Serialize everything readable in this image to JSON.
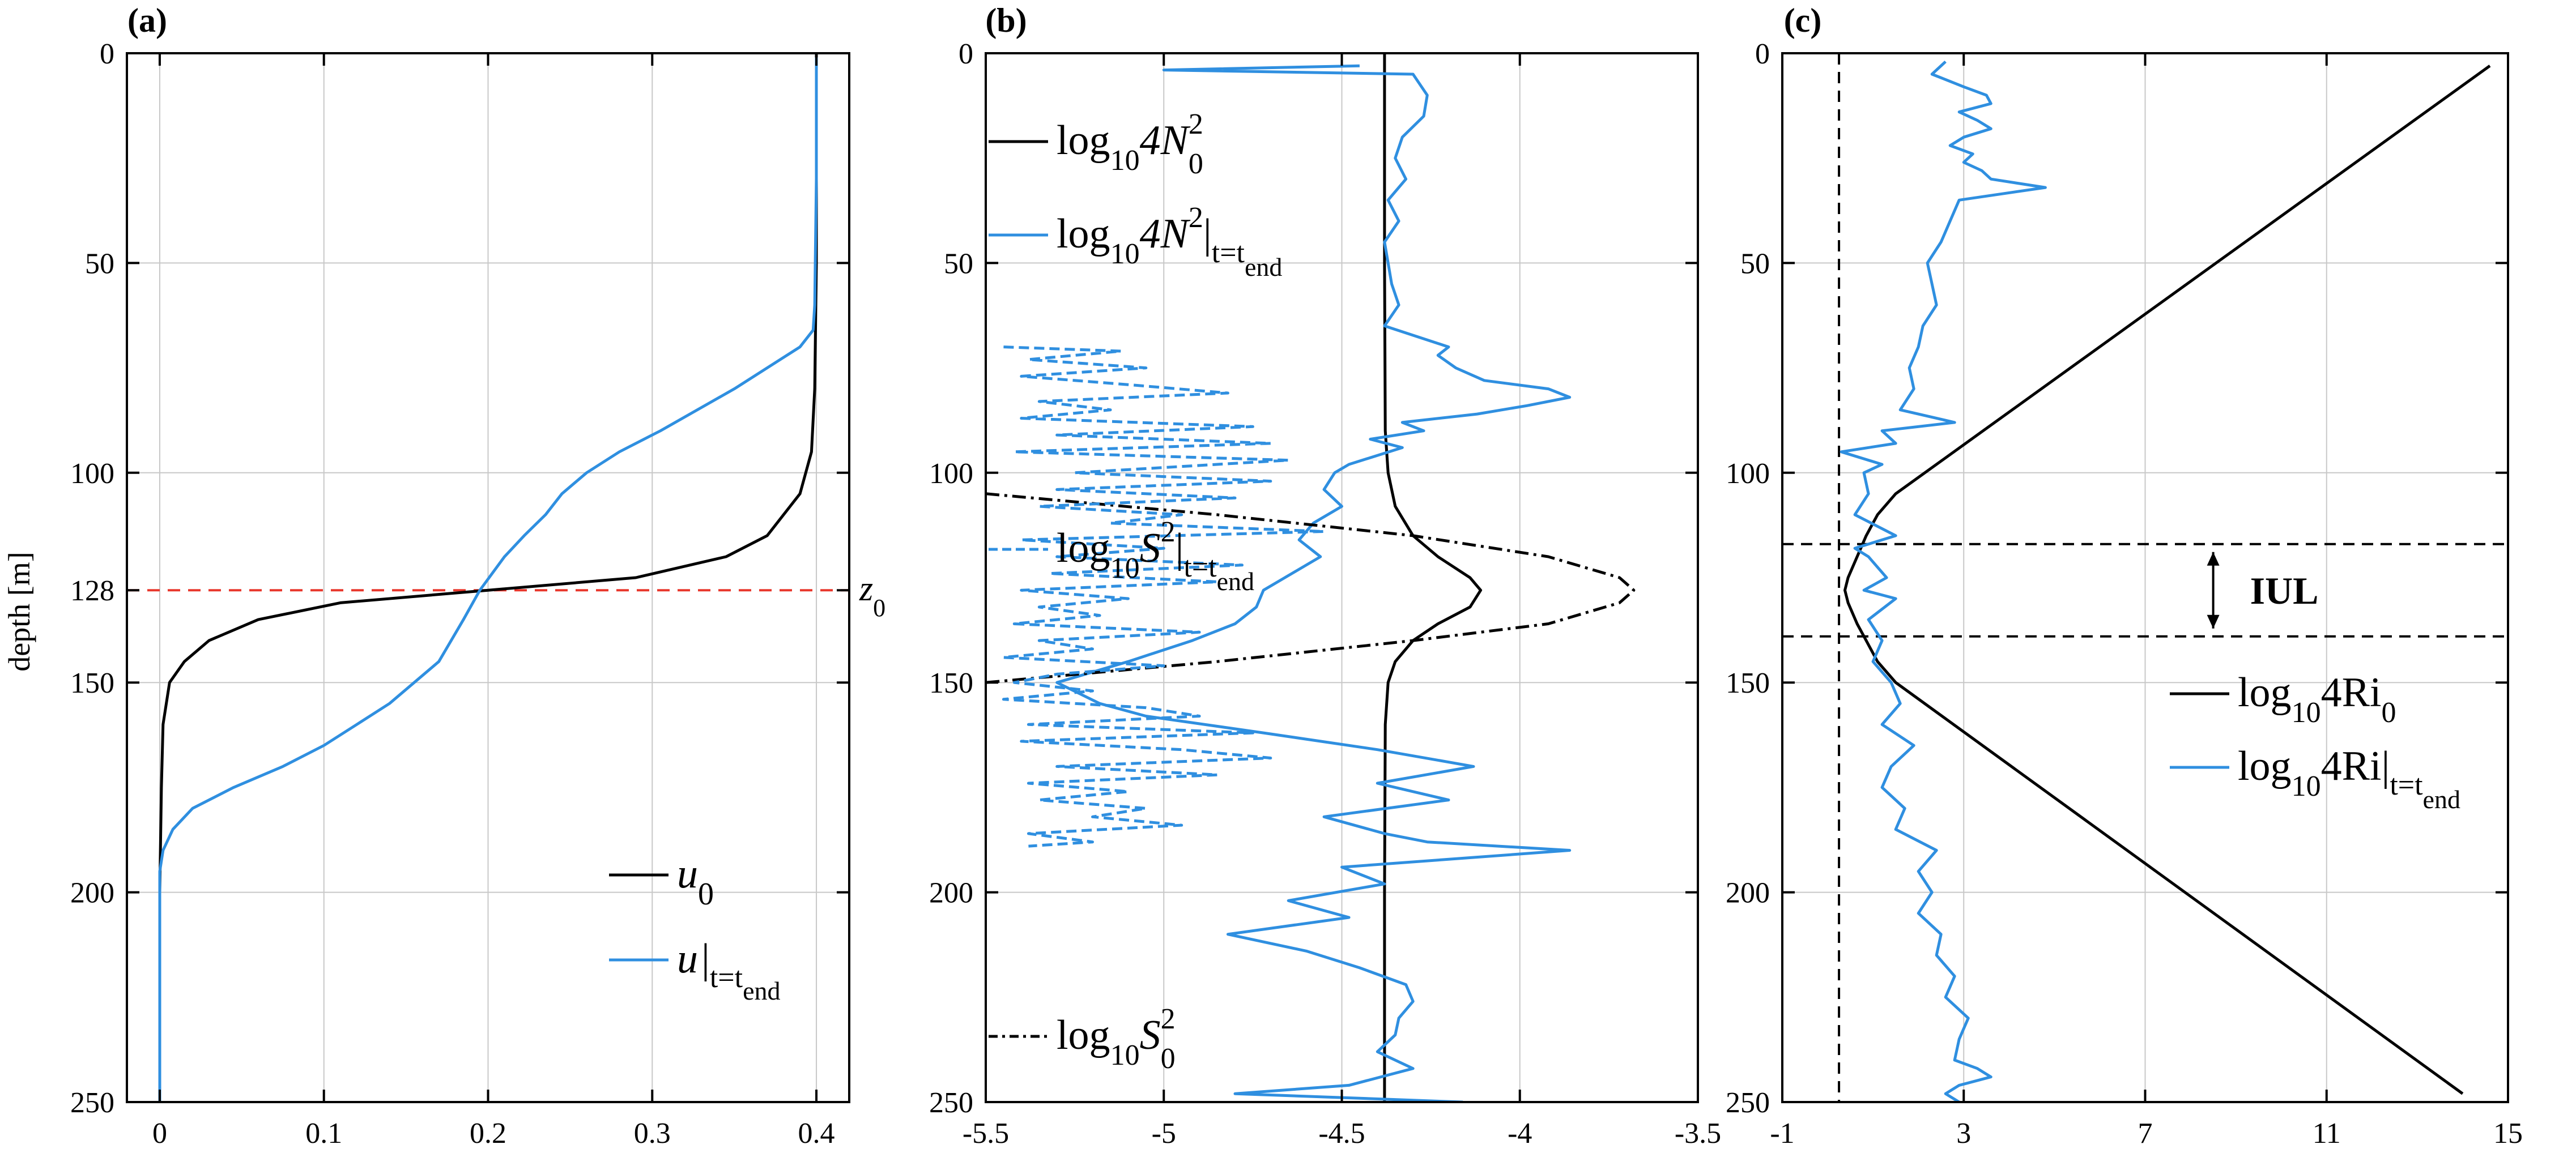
{
  "colors": {
    "initial": "#000000",
    "final": "#2f8fe0",
    "z0_line": "#e8372c",
    "grid": "#c8c8c8"
  },
  "chart_data": [
    {
      "panel": "(a)",
      "type": "line",
      "xlim": [
        -0.02,
        0.42
      ],
      "ylim": [
        0,
        250
      ],
      "y_reversed": true,
      "xticks": [
        "0",
        "0.1",
        "0.2",
        "0.3",
        "0.4"
      ],
      "xtick_values": [
        0,
        0.1,
        0.2,
        0.3,
        0.4
      ],
      "yticks": [
        "0",
        "50",
        "100",
        "128",
        "150",
        "200",
        "250"
      ],
      "ytick_values": [
        0,
        50,
        100,
        128,
        150,
        200,
        250
      ],
      "ylabel": "depth [m]",
      "grid": true,
      "legend_placement": "bottom-right",
      "hline": {
        "y": 128,
        "label": "z",
        "sub": "0"
      },
      "series": [
        {
          "key": "initial",
          "legend_main": "u",
          "legend_sub": "0",
          "legend_sub2": "",
          "y": [
            0,
            50,
            80,
            95,
            105,
            115,
            120,
            125,
            128,
            131,
            135,
            140,
            145,
            150,
            160,
            175,
            200,
            250
          ],
          "x": [
            0.4,
            0.4,
            0.399,
            0.397,
            0.39,
            0.37,
            0.345,
            0.29,
            0.2,
            0.11,
            0.06,
            0.03,
            0.015,
            0.006,
            0.002,
            0.001,
            0,
            0
          ]
        },
        {
          "key": "final",
          "legend_main": "u",
          "legend_sub": "t=t",
          "legend_sub2": "end",
          "y": [
            1,
            30,
            60,
            66,
            70,
            80,
            90,
            95,
            100,
            105,
            110,
            115,
            120,
            128,
            135,
            145,
            150,
            155,
            160,
            165,
            170,
            175,
            180,
            185,
            190,
            195,
            200,
            220,
            250
          ],
          "x": [
            0.4,
            0.4,
            0.399,
            0.398,
            0.39,
            0.35,
            0.305,
            0.28,
            0.26,
            0.245,
            0.235,
            0.222,
            0.21,
            0.195,
            0.185,
            0.17,
            0.155,
            0.14,
            0.12,
            0.1,
            0.075,
            0.045,
            0.02,
            0.008,
            0.002,
            0,
            0,
            0,
            0
          ]
        }
      ]
    },
    {
      "panel": "(b)",
      "type": "line",
      "xlim": [
        -5.5,
        -3.5
      ],
      "ylim": [
        0,
        250
      ],
      "y_reversed": true,
      "xticks": [
        "-5.5",
        "-5",
        "-4.5",
        "-4",
        "-3.5"
      ],
      "xtick_values": [
        -5.5,
        -5,
        -4.5,
        -4,
        -3.5
      ],
      "yticks": [
        "0",
        "50",
        "100",
        "150",
        "200",
        "250"
      ],
      "ytick_values": [
        0,
        50,
        100,
        150,
        200,
        250
      ],
      "grid": true,
      "series": [
        {
          "key": "initial",
          "dash": "none",
          "legend_main": "log",
          "legend_sub": "10",
          "legend_tail": "4N",
          "legend_sup": "2",
          "legend_sub3": "0",
          "legend_sub4": "",
          "y": [
            0,
            50,
            90,
            100,
            108,
            115,
            120,
            125,
            128,
            132,
            136,
            140,
            145,
            150,
            160,
            200,
            250
          ],
          "x": [
            -4.38,
            -4.38,
            -4.378,
            -4.37,
            -4.35,
            -4.3,
            -4.23,
            -4.14,
            -4.11,
            -4.14,
            -4.23,
            -4.3,
            -4.35,
            -4.37,
            -4.378,
            -4.38,
            -4.38
          ]
        },
        {
          "key": "final",
          "dash": "none",
          "legend_main": "log",
          "legend_sub": "10",
          "legend_tail": "4N",
          "legend_sup": "2",
          "legend_sub3": "t=t",
          "legend_sub4": "end",
          "y": [
            3,
            4,
            5,
            10,
            15,
            20,
            25,
            30,
            35,
            40,
            45,
            50,
            55,
            60,
            65,
            70,
            72,
            75,
            78,
            80,
            82,
            84,
            86,
            88,
            90,
            92,
            94,
            98,
            100,
            104,
            108,
            112,
            116,
            120,
            125,
            128,
            132,
            136,
            140,
            145,
            150,
            155,
            158,
            162,
            166,
            170,
            174,
            178,
            182,
            186,
            188,
            190,
            194,
            198,
            202,
            206,
            210,
            214,
            218,
            222,
            226,
            230,
            234,
            238,
            242,
            246,
            248,
            250
          ],
          "x": [
            -4.45,
            -5.0,
            -4.3,
            -4.26,
            -4.27,
            -4.33,
            -4.35,
            -4.32,
            -4.37,
            -4.34,
            -4.38,
            -4.37,
            -4.36,
            -4.34,
            -4.38,
            -4.2,
            -4.23,
            -4.18,
            -4.1,
            -3.92,
            -3.86,
            -3.98,
            -4.12,
            -4.33,
            -4.27,
            -4.42,
            -4.33,
            -4.48,
            -4.52,
            -4.55,
            -4.5,
            -4.58,
            -4.62,
            -4.56,
            -4.66,
            -4.72,
            -4.74,
            -4.8,
            -4.92,
            -5.1,
            -5.3,
            -5.18,
            -5.05,
            -4.72,
            -4.4,
            -4.13,
            -4.4,
            -4.2,
            -4.55,
            -4.38,
            -4.26,
            -3.86,
            -4.5,
            -4.38,
            -4.65,
            -4.48,
            -4.82,
            -4.6,
            -4.45,
            -4.32,
            -4.3,
            -4.34,
            -4.35,
            -4.4,
            -4.3,
            -4.48,
            -4.8,
            -4.16
          ]
        },
        {
          "key": "initial",
          "dash": "24 9 5 9",
          "legend_main": "log",
          "legend_sub": "10",
          "legend_tail": "S",
          "legend_sup": "2",
          "legend_sub3": "0",
          "legend_sub4": "",
          "y": [
            105,
            110,
            115,
            120,
            125,
            128,
            131,
            136,
            140,
            145,
            150
          ],
          "x": [
            -5.5,
            -4.85,
            -4.3,
            -3.92,
            -3.72,
            -3.68,
            -3.72,
            -3.92,
            -4.3,
            -4.85,
            -5.5
          ]
        },
        {
          "key": "final",
          "dash": "18 9",
          "legend_main": "log",
          "legend_sub": "10",
          "legend_tail": "S",
          "legend_sup": "2",
          "legend_sub3": "t=t",
          "legend_sub4": "end",
          "y": [
            70,
            71,
            73,
            75,
            77,
            79,
            81,
            83,
            85,
            87,
            89,
            91,
            93,
            95,
            97,
            100,
            102,
            104,
            106,
            108,
            110,
            112,
            114,
            116,
            118,
            120,
            122,
            124,
            126,
            128,
            130,
            132,
            134,
            136,
            138,
            140,
            142,
            144,
            146,
            148,
            150,
            152,
            154,
            156,
            158,
            160,
            162,
            164,
            166,
            168,
            170,
            172,
            174,
            176,
            178,
            180,
            182,
            184,
            186,
            188,
            189
          ],
          "x": [
            -5.45,
            -5.12,
            -5.38,
            -5.05,
            -5.4,
            -5.1,
            -4.82,
            -5.35,
            -5.15,
            -5.4,
            -4.75,
            -5.3,
            -4.7,
            -5.42,
            -4.65,
            -5.25,
            -4.7,
            -5.3,
            -4.8,
            -5.35,
            -4.95,
            -5.15,
            -4.55,
            -5.4,
            -5.0,
            -5.3,
            -4.78,
            -5.32,
            -4.85,
            -5.4,
            -5.1,
            -5.35,
            -5.18,
            -5.42,
            -4.9,
            -5.35,
            -5.2,
            -5.45,
            -5.0,
            -5.3,
            -5.42,
            -5.2,
            -5.45,
            -5.05,
            -4.9,
            -5.38,
            -4.75,
            -5.4,
            -4.95,
            -4.7,
            -5.3,
            -4.85,
            -5.38,
            -5.1,
            -5.35,
            -5.05,
            -5.2,
            -4.95,
            -5.38,
            -5.2,
            -5.38
          ]
        }
      ]
    },
    {
      "panel": "(c)",
      "type": "line",
      "xlim": [
        -1,
        15
      ],
      "ylim": [
        0,
        250
      ],
      "y_reversed": true,
      "xticks": [
        "-1",
        "3",
        "7",
        "11",
        "15"
      ],
      "xtick_values": [
        -1,
        3,
        7,
        11,
        15
      ],
      "yticks": [
        "0",
        "50",
        "100",
        "150",
        "200",
        "250"
      ],
      "ytick_values": [
        0,
        50,
        100,
        150,
        200,
        250
      ],
      "grid": true,
      "vline": {
        "x": 0.25
      },
      "iul": {
        "y_top": 117,
        "y_bottom": 139,
        "label": "IUL"
      },
      "series": [
        {
          "key": "initial",
          "legend_main": "log",
          "legend_sub": "10",
          "legend_tail": "4Ri",
          "legend_sub3": "0",
          "legend_sub4": "",
          "y": [
            3,
            105,
            110,
            115,
            120,
            125,
            128,
            131,
            136,
            140,
            145,
            150,
            248
          ],
          "x": [
            14.6,
            1.5,
            1.1,
            0.85,
            0.65,
            0.45,
            0.38,
            0.45,
            0.65,
            0.85,
            1.1,
            1.5,
            14.0
          ]
        },
        {
          "key": "final",
          "legend_main": "log",
          "legend_sub": "10",
          "legend_tail": "4Ri",
          "legend_sub3": "t=t",
          "legend_sub4": "end",
          "y": [
            2,
            5,
            8,
            10,
            12,
            14,
            16,
            18,
            20,
            22,
            24,
            26,
            28,
            30,
            32,
            35,
            40,
            45,
            50,
            55,
            60,
            65,
            70,
            75,
            80,
            85,
            88,
            90,
            93,
            95,
            98,
            100,
            105,
            110,
            115,
            118,
            120,
            125,
            128,
            130,
            135,
            140,
            145,
            150,
            155,
            160,
            165,
            170,
            175,
            180,
            185,
            190,
            195,
            200,
            205,
            210,
            215,
            220,
            225,
            230,
            235,
            240,
            242,
            244,
            246,
            248,
            250
          ],
          "x": [
            2.6,
            2.3,
            3.0,
            3.5,
            3.6,
            2.9,
            3.3,
            3.6,
            3.0,
            2.7,
            3.2,
            3.0,
            3.4,
            3.6,
            4.8,
            2.9,
            2.7,
            2.5,
            2.2,
            2.3,
            2.4,
            2.1,
            2.0,
            1.8,
            1.9,
            1.6,
            2.8,
            1.2,
            1.5,
            0.3,
            1.2,
            0.8,
            0.9,
            0.6,
            1.5,
            0.6,
            0.9,
            1.3,
            0.8,
            1.5,
            0.9,
            1.2,
            1.0,
            1.4,
            1.6,
            1.2,
            1.9,
            1.4,
            1.2,
            1.7,
            1.5,
            2.4,
            2.0,
            2.3,
            2.0,
            2.5,
            2.4,
            2.8,
            2.6,
            3.1,
            2.9,
            2.8,
            3.3,
            3.6,
            2.9,
            2.6,
            2.9
          ]
        }
      ]
    }
  ]
}
